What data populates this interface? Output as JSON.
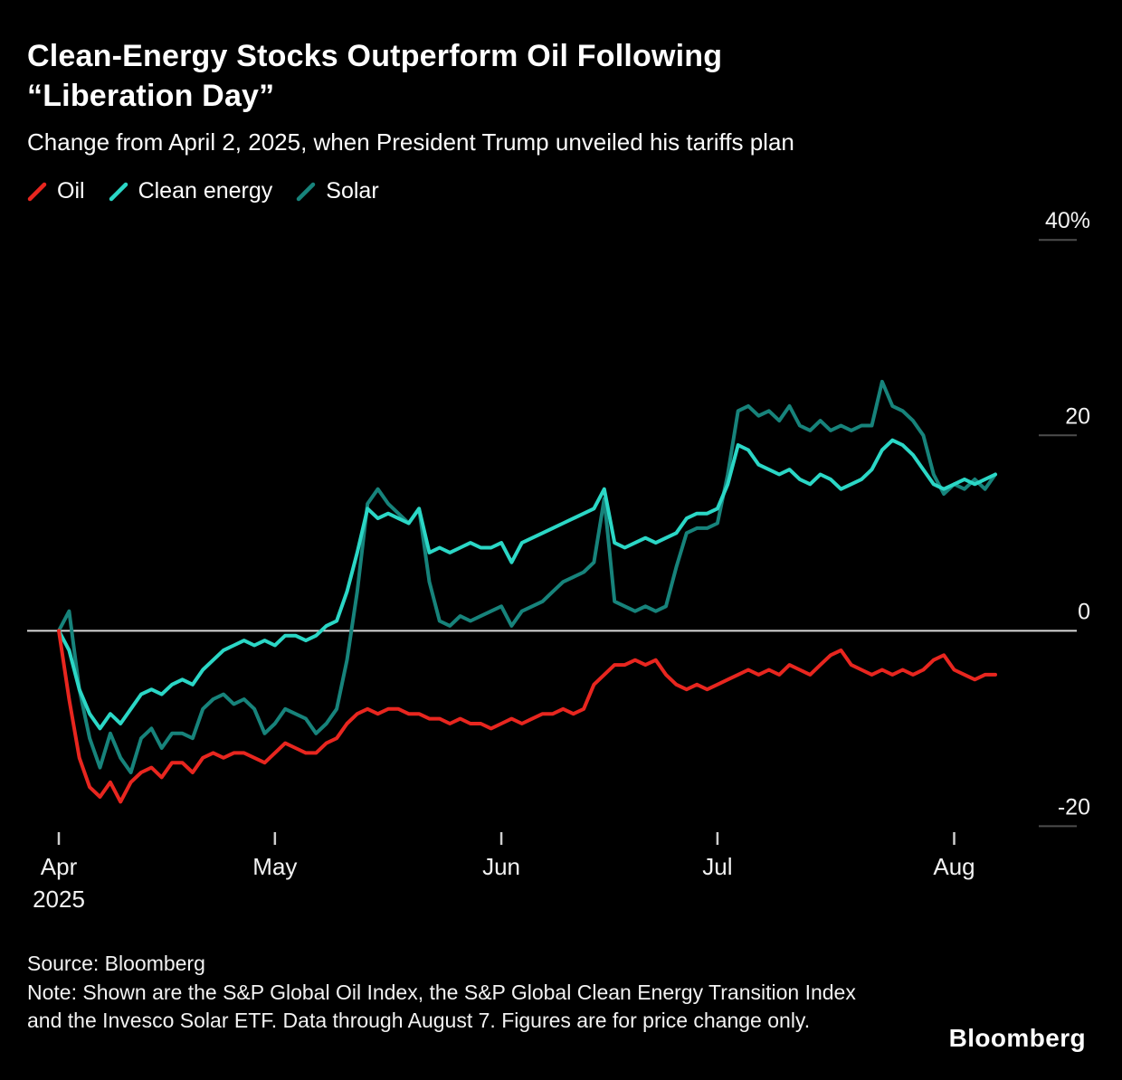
{
  "header": {
    "title_line1": "Clean-Energy Stocks Outperform Oil Following",
    "title_line2": "“Liberation Day”",
    "subtitle": "Change from April 2, 2025, when President Trump unveiled his tariffs plan"
  },
  "legend": [
    {
      "label": "Oil",
      "color": "#e8261f"
    },
    {
      "label": "Clean energy",
      "color": "#2bd7c6"
    },
    {
      "label": "Solar",
      "color": "#17837b"
    }
  ],
  "colors": {
    "background": "#000000",
    "zero_line": "#d9d9d9",
    "side_gridline": "#4d4d4d",
    "axis_tick": "#cfcfcf",
    "axis_label": "#f2f2f2"
  },
  "chart_data": {
    "type": "line",
    "title": "Clean-Energy Stocks Outperform Oil Following “Liberation Day”",
    "subtitle": "Change from April 2, 2025, when President Trump unveiled his tariffs plan",
    "x_unit": "trading days from Apr 2, 2025 through Aug 7, 2025",
    "ylabel": "% change since April 2, 2025",
    "ylim": [
      -22,
      44
    ],
    "grid": "zero-line-full-width, short right-edge dashes at 40/20/-20",
    "legend_position": "top-left",
    "y_ticks": [
      {
        "value": 40,
        "label": "40%"
      },
      {
        "value": 20,
        "label": "20"
      },
      {
        "value": 0,
        "label": "0"
      },
      {
        "value": -20,
        "label": "-20"
      }
    ],
    "x_ticks": [
      {
        "index": 0,
        "label": "Apr",
        "sublabel": "2025"
      },
      {
        "index": 21,
        "label": "May"
      },
      {
        "index": 43,
        "label": "Jun"
      },
      {
        "index": 64,
        "label": "Jul"
      },
      {
        "index": 87,
        "label": "Aug"
      }
    ],
    "series": [
      {
        "name": "Oil",
        "color": "#e8261f",
        "values": [
          0,
          -7,
          -13,
          -16,
          -17,
          -15.5,
          -17.5,
          -15.5,
          -14.5,
          -14,
          -15,
          -13.5,
          -13.5,
          -14.5,
          -13,
          -12.5,
          -13,
          -12.5,
          -12.5,
          -13,
          -13.5,
          -12.5,
          -11.5,
          -12,
          -12.5,
          -12.5,
          -11.5,
          -11,
          -9.5,
          -8.5,
          -8,
          -8.5,
          -8,
          -8,
          -8.5,
          -8.5,
          -9,
          -9,
          -9.5,
          -9,
          -9.5,
          -9.5,
          -10,
          -9.5,
          -9,
          -9.5,
          -9,
          -8.5,
          -8.5,
          -8,
          -8.5,
          -8,
          -5.5,
          -4.5,
          -3.5,
          -3.5,
          -3,
          -3.5,
          -3,
          -4.5,
          -5.5,
          -6,
          -5.5,
          -6,
          -5.5,
          -5,
          -4.5,
          -4,
          -4.5,
          -4,
          -4.5,
          -3.5,
          -4,
          -4.5,
          -3.5,
          -2.5,
          -2,
          -3.5,
          -4,
          -4.5,
          -4,
          -4.5,
          -4,
          -4.5,
          -4,
          -3,
          -2.5,
          -4,
          -4.5,
          -5,
          -4.5,
          -4.5
        ]
      },
      {
        "name": "Clean energy",
        "color": "#2bd7c6",
        "values": [
          0,
          -2,
          -6,
          -8.5,
          -10,
          -8.5,
          -9.5,
          -8,
          -6.5,
          -6,
          -6.5,
          -5.5,
          -5,
          -5.5,
          -4,
          -3,
          -2,
          -1.5,
          -1,
          -1.5,
          -1,
          -1.5,
          -0.5,
          -0.5,
          -1,
          -0.5,
          0.5,
          1,
          4,
          8,
          12.5,
          11.5,
          12,
          11.5,
          11,
          12.5,
          8,
          8.5,
          8,
          8.5,
          9,
          8.5,
          8.5,
          9,
          7,
          9,
          9.5,
          10,
          10.5,
          11,
          11.5,
          12,
          12.5,
          14.5,
          9,
          8.5,
          9,
          9.5,
          9,
          9.5,
          10,
          11.5,
          12,
          12,
          12.5,
          15,
          19,
          18.5,
          17,
          16.5,
          16,
          16.5,
          15.5,
          15,
          16,
          15.5,
          14.5,
          15,
          15.5,
          16.5,
          18.5,
          19.5,
          19,
          18,
          16.5,
          15,
          14.5,
          15,
          15.5,
          15,
          15.5,
          16
        ]
      },
      {
        "name": "Solar",
        "color": "#17837b",
        "values": [
          0,
          2,
          -6,
          -11,
          -14,
          -10.5,
          -13,
          -14.5,
          -11,
          -10,
          -12,
          -10.5,
          -10.5,
          -11,
          -8,
          -7,
          -6.5,
          -7.5,
          -7,
          -8,
          -10.5,
          -9.5,
          -8,
          -8.5,
          -9,
          -10.5,
          -9.5,
          -8,
          -3,
          4,
          13,
          14.5,
          13,
          12,
          11,
          12.5,
          5,
          1,
          0.5,
          1.5,
          1,
          1.5,
          2,
          2.5,
          0.5,
          2,
          2.5,
          3,
          4,
          5,
          5.5,
          6,
          7,
          13.5,
          3,
          2.5,
          2,
          2.5,
          2,
          2.5,
          6.5,
          10,
          10.5,
          10.5,
          11,
          16,
          22.5,
          23,
          22,
          22.5,
          21.5,
          23,
          21,
          20.5,
          21.5,
          20.5,
          21,
          20.5,
          21,
          21,
          25.5,
          23,
          22.5,
          21.5,
          20,
          16,
          14,
          15,
          14.5,
          15.5,
          14.5,
          16
        ]
      }
    ]
  },
  "footer": {
    "source": "Source: Bloomberg",
    "note": "Note: Shown are the S&P Global Oil Index, the S&P Global Clean Energy Transition Index and the Invesco Solar ETF. Data through August 7. Figures are for price change only.",
    "brand": "Bloomberg"
  }
}
